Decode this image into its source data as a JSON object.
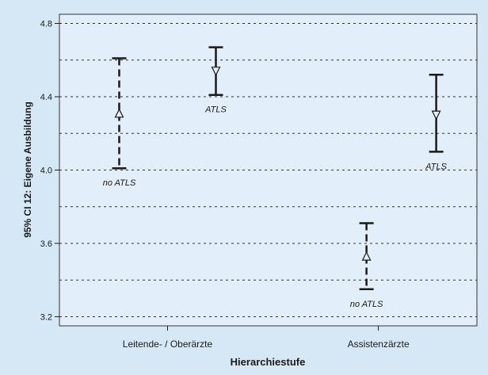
{
  "chart_data": {
    "type": "errorbar",
    "xlabel": "Hierarchiestufe",
    "ylabel": "95% CI 12: Eigene Ausbildung",
    "categories": [
      "Leitende- / Oberärzte",
      "Assistenzärzte"
    ],
    "ylim": [
      3.15,
      4.85
    ],
    "yticks": [
      "3.2",
      "3.6",
      "4.0",
      "4.4",
      "4.8"
    ],
    "grid": "horizontal dotted every 0.2",
    "series": [
      {
        "name": "no ATLS",
        "marker": "triangle-up",
        "line_style": "dashed",
        "points": [
          {
            "category": "Leitende- / Oberärzte",
            "mean": 4.31,
            "lower": 4.01,
            "upper": 4.61
          },
          {
            "category": "Assistenzärzte",
            "mean": 3.53,
            "lower": 3.35,
            "upper": 3.71
          }
        ]
      },
      {
        "name": "ATLS",
        "marker": "triangle-down",
        "line_style": "solid",
        "points": [
          {
            "category": "Leitende- / Oberärzte",
            "mean": 4.54,
            "lower": 4.41,
            "upper": 4.67
          },
          {
            "category": "Assistenzärzte",
            "mean": 4.3,
            "lower": 4.1,
            "upper": 4.52
          }
        ]
      }
    ],
    "point_labels": [
      {
        "text": "no ATLS",
        "series": "no ATLS",
        "category": "Leitende- / Oberärzte"
      },
      {
        "text": "ATLS",
        "series": "ATLS",
        "category": "Leitende- / Oberärzte"
      },
      {
        "text": "no ATLS",
        "series": "no ATLS",
        "category": "Assistenzärzte"
      },
      {
        "text": "ATLS",
        "series": "ATLS",
        "category": "Assistenzärzte"
      }
    ],
    "colors": {
      "background": "#d6e8f6",
      "plot_background": "#e2eef9",
      "ink": "#1a1a1a",
      "grid": "#333333"
    }
  }
}
